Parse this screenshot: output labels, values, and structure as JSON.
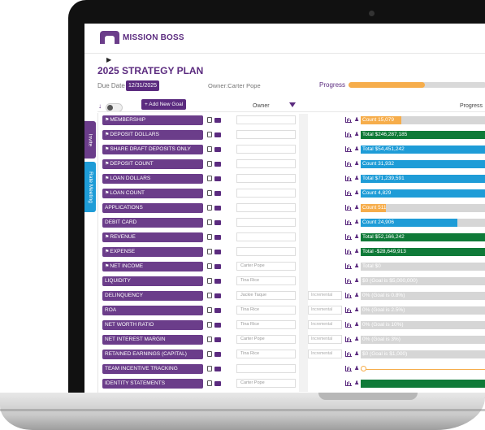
{
  "app": {
    "brand": "MISSION BOSS",
    "title": "2025 STRATEGY PLAN",
    "due_label": "Due Date",
    "due_value": "12/31/2025",
    "owner_label": "Owner:",
    "owner_value": "Carter Pope",
    "progress_label": "Progress",
    "overall_progress": 0.55,
    "add_goal": "+ Add New Goal",
    "col_owner": "Owner",
    "col_progress": "Progress",
    "tabs": [
      "Invite",
      "Rate Meeting"
    ]
  },
  "colors": {
    "purple": "#6b3d8a",
    "orange": "#f6ad4b",
    "green": "#0f7a38",
    "blue": "#1e9cd7",
    "grey": "#d6d6d6"
  },
  "goals": [
    {
      "name": "MEMBERSHIP",
      "pinned": true,
      "owner": "",
      "incremental": "",
      "progress_text": "Count 15,079",
      "fill": 0.33,
      "color": "orange"
    },
    {
      "name": "DEPOSIT DOLLARS",
      "pinned": true,
      "owner": "",
      "incremental": "",
      "progress_text": "Total $246,287,185",
      "fill": 1.0,
      "color": "green"
    },
    {
      "name": "SHARE DRAFT DEPOSITS ONLY",
      "pinned": true,
      "owner": "",
      "incremental": "",
      "progress_text": "Total $54,451,242",
      "fill": 1.0,
      "color": "blue"
    },
    {
      "name": "DEPOSIT COUNT",
      "pinned": true,
      "owner": "",
      "incremental": "",
      "progress_text": "Count 31,932",
      "fill": 1.0,
      "color": "blue"
    },
    {
      "name": "LOAN DOLLARS",
      "pinned": true,
      "owner": "",
      "incremental": "",
      "progress_text": "Total $71,239,591",
      "fill": 1.0,
      "color": "blue"
    },
    {
      "name": "LOAN COUNT",
      "pinned": true,
      "owner": "",
      "incremental": "",
      "progress_text": "Count 4,829",
      "fill": 1.0,
      "color": "blue"
    },
    {
      "name": "APPLICATIONS",
      "pinned": false,
      "owner": "",
      "incremental": "",
      "progress_text": "Count 511",
      "fill": 0.2,
      "color": "orange"
    },
    {
      "name": "DEBIT CARD",
      "pinned": false,
      "owner": "",
      "incremental": "",
      "progress_text": "Count 24,906",
      "fill": 0.78,
      "color": "blue"
    },
    {
      "name": "REVENUE",
      "pinned": true,
      "owner": "",
      "incremental": "",
      "progress_text": "Total $52,166,242",
      "fill": 1.0,
      "color": "green"
    },
    {
      "name": "EXPENSE",
      "pinned": true,
      "owner": "",
      "incremental": "",
      "progress_text": "Total -$28,649,913",
      "fill": 1.0,
      "color": "green"
    },
    {
      "name": "NET INCOME",
      "pinned": true,
      "owner": "Carter Pope",
      "incremental": "",
      "progress_text": "Total $0",
      "fill": 0,
      "color": "grey"
    },
    {
      "name": "LIQUIDITY",
      "pinned": false,
      "owner": "Tina Rice",
      "incremental": "",
      "progress_text": "$0 (Goal is $5,000,000)",
      "fill": 0,
      "color": "grey"
    },
    {
      "name": "DELINQUENCY",
      "pinned": false,
      "owner": "Jackie Taque",
      "incremental": "Incremental",
      "progress_text": "0% (Goal is 0.8%)",
      "fill": 0,
      "color": "grey"
    },
    {
      "name": "ROA",
      "pinned": false,
      "owner": "Tina Rice",
      "incremental": "Incremental",
      "progress_text": "0% (Goal is 2.5%)",
      "fill": 0,
      "color": "grey"
    },
    {
      "name": "NET WORTH RATIO",
      "pinned": false,
      "owner": "Tina Rice",
      "incremental": "Incremental",
      "progress_text": "0% (Goal is 10%)",
      "fill": 0,
      "color": "grey"
    },
    {
      "name": "NET INTEREST MARGIN",
      "pinned": false,
      "owner": "Carter Pope",
      "incremental": "Incremental",
      "progress_text": "0% (Goal is 3%)",
      "fill": 0,
      "color": "grey"
    },
    {
      "name": "RETAINED EARNINGS (CAPITAL)",
      "pinned": false,
      "owner": "Tina Rice",
      "incremental": "Incremental",
      "progress_text": "$0 (Goal is $1,000)",
      "fill": 0,
      "color": "grey"
    },
    {
      "name": "TEAM INCENTIVE TRACKING",
      "pinned": false,
      "owner": "",
      "incremental": "",
      "progress_text": "",
      "fill": 0,
      "color": "slider"
    },
    {
      "name": "IDENTITY STATEMENTS",
      "pinned": false,
      "owner": "Carter Pope",
      "incremental": "",
      "progress_text": "",
      "fill": 1.0,
      "color": "green"
    }
  ]
}
